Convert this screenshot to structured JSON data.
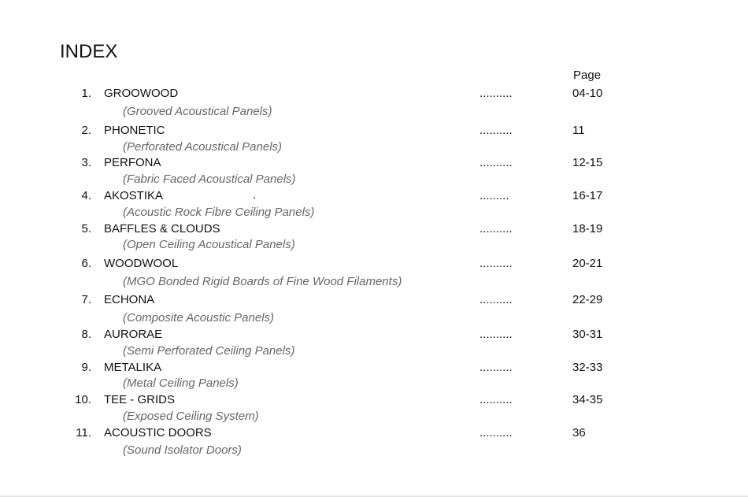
{
  "title": "INDEX",
  "page_header": "Page",
  "stray_mark": ".",
  "entries": [
    {
      "num": "1.",
      "name": "GROOWOOD",
      "sub": "(Grooved Acoustical Panels)",
      "dots": "..........",
      "page": "04-10"
    },
    {
      "num": "2.",
      "name": "PHONETIC",
      "sub": "(Perforated Acoustical Panels)",
      "dots": "..........",
      "page": "11"
    },
    {
      "num": "3.",
      "name": "PERFONA",
      "sub": "(Fabric Faced Acoustical Panels)",
      "dots": "..........",
      "page": "12-15"
    },
    {
      "num": "4.",
      "name": "AKOSTIKA",
      "sub": "(Acoustic Rock Fibre Ceiling Panels)",
      "dots": ".........",
      "page": "16-17"
    },
    {
      "num": "5.",
      "name": "BAFFLES & CLOUDS",
      "sub": "(Open Ceiling Acoustical Panels)",
      "dots": "..........",
      "page": "18-19"
    },
    {
      "num": "6.",
      "name": "WOODWOOL",
      "sub": "(MGO Bonded Rigid Boards of Fine Wood Filaments)",
      "dots": "..........",
      "page": "20-21"
    },
    {
      "num": "7.",
      "name": "ECHONA",
      "sub": "(Composite Acoustic Panels)",
      "dots": "..........",
      "page": "22-29"
    },
    {
      "num": "8.",
      "name": "AURORAE",
      "sub": "(Semi Perforated Ceiling Panels)",
      "dots": "..........",
      "page": "30-31"
    },
    {
      "num": "9.",
      "name": "METALIKA",
      "sub": "(Metal Ceiling Panels)",
      "dots": "..........",
      "page": "32-33"
    },
    {
      "num": "10.",
      "name": "TEE - GRIDS",
      "sub": "(Exposed Ceiling System)",
      "dots": "..........",
      "page": "34-35"
    },
    {
      "num": "11.",
      "name": "ACOUSTIC DOORS",
      "sub": "(Sound Isolator Doors)",
      "dots": "..........",
      "page": "36"
    }
  ]
}
